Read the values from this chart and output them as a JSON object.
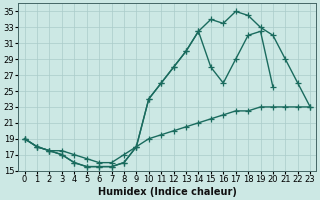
{
  "xlabel": "Humidex (Indice chaleur)",
  "background_color": "#cce8e4",
  "grid_color": "#aaccca",
  "line_color": "#1a6b5e",
  "xlim": [
    -0.5,
    23.5
  ],
  "ylim": [
    15,
    36
  ],
  "xticks": [
    0,
    1,
    2,
    3,
    4,
    5,
    6,
    7,
    8,
    9,
    10,
    11,
    12,
    13,
    14,
    15,
    16,
    17,
    18,
    19,
    20,
    21,
    22,
    23
  ],
  "yticks": [
    15,
    17,
    19,
    21,
    23,
    25,
    27,
    29,
    31,
    33,
    35
  ],
  "line_top_x": [
    0,
    1,
    2,
    3,
    4,
    5,
    6,
    7,
    8,
    9,
    10,
    11,
    12,
    13,
    14,
    15,
    16,
    17,
    18,
    19,
    20,
    21,
    22,
    23
  ],
  "line_top_y": [
    19,
    18,
    17.5,
    17,
    16,
    15.5,
    15.5,
    15.5,
    16,
    18,
    24,
    26,
    28,
    30,
    32.5,
    34,
    33.5,
    35,
    34.5,
    33,
    32,
    29,
    26,
    23
  ],
  "line_mid_x": [
    0,
    1,
    2,
    3,
    4,
    5,
    6,
    7,
    8,
    9,
    10,
    11,
    12,
    13,
    14,
    15,
    16,
    17,
    18,
    19,
    20
  ],
  "line_mid_y": [
    19,
    18,
    17.5,
    17,
    16,
    15.5,
    15.5,
    15.5,
    16,
    18,
    24,
    26,
    28,
    30,
    32.5,
    28,
    26,
    29,
    32,
    32.5,
    25.5
  ],
  "line_bot_x": [
    0,
    1,
    2,
    3,
    4,
    5,
    6,
    7,
    8,
    9,
    10,
    11,
    12,
    13,
    14,
    15,
    16,
    17,
    18,
    19,
    20,
    21,
    22,
    23
  ],
  "line_bot_y": [
    19,
    18,
    17.5,
    17.5,
    17,
    16.5,
    16,
    16,
    17,
    18,
    19,
    19.5,
    20,
    20.5,
    21,
    21.5,
    22,
    22.5,
    22.5,
    23,
    23,
    23,
    23,
    23
  ],
  "marker": "+",
  "markersize": 4,
  "linewidth": 1.0,
  "xlabel_fontsize": 7,
  "tick_fontsize": 6
}
